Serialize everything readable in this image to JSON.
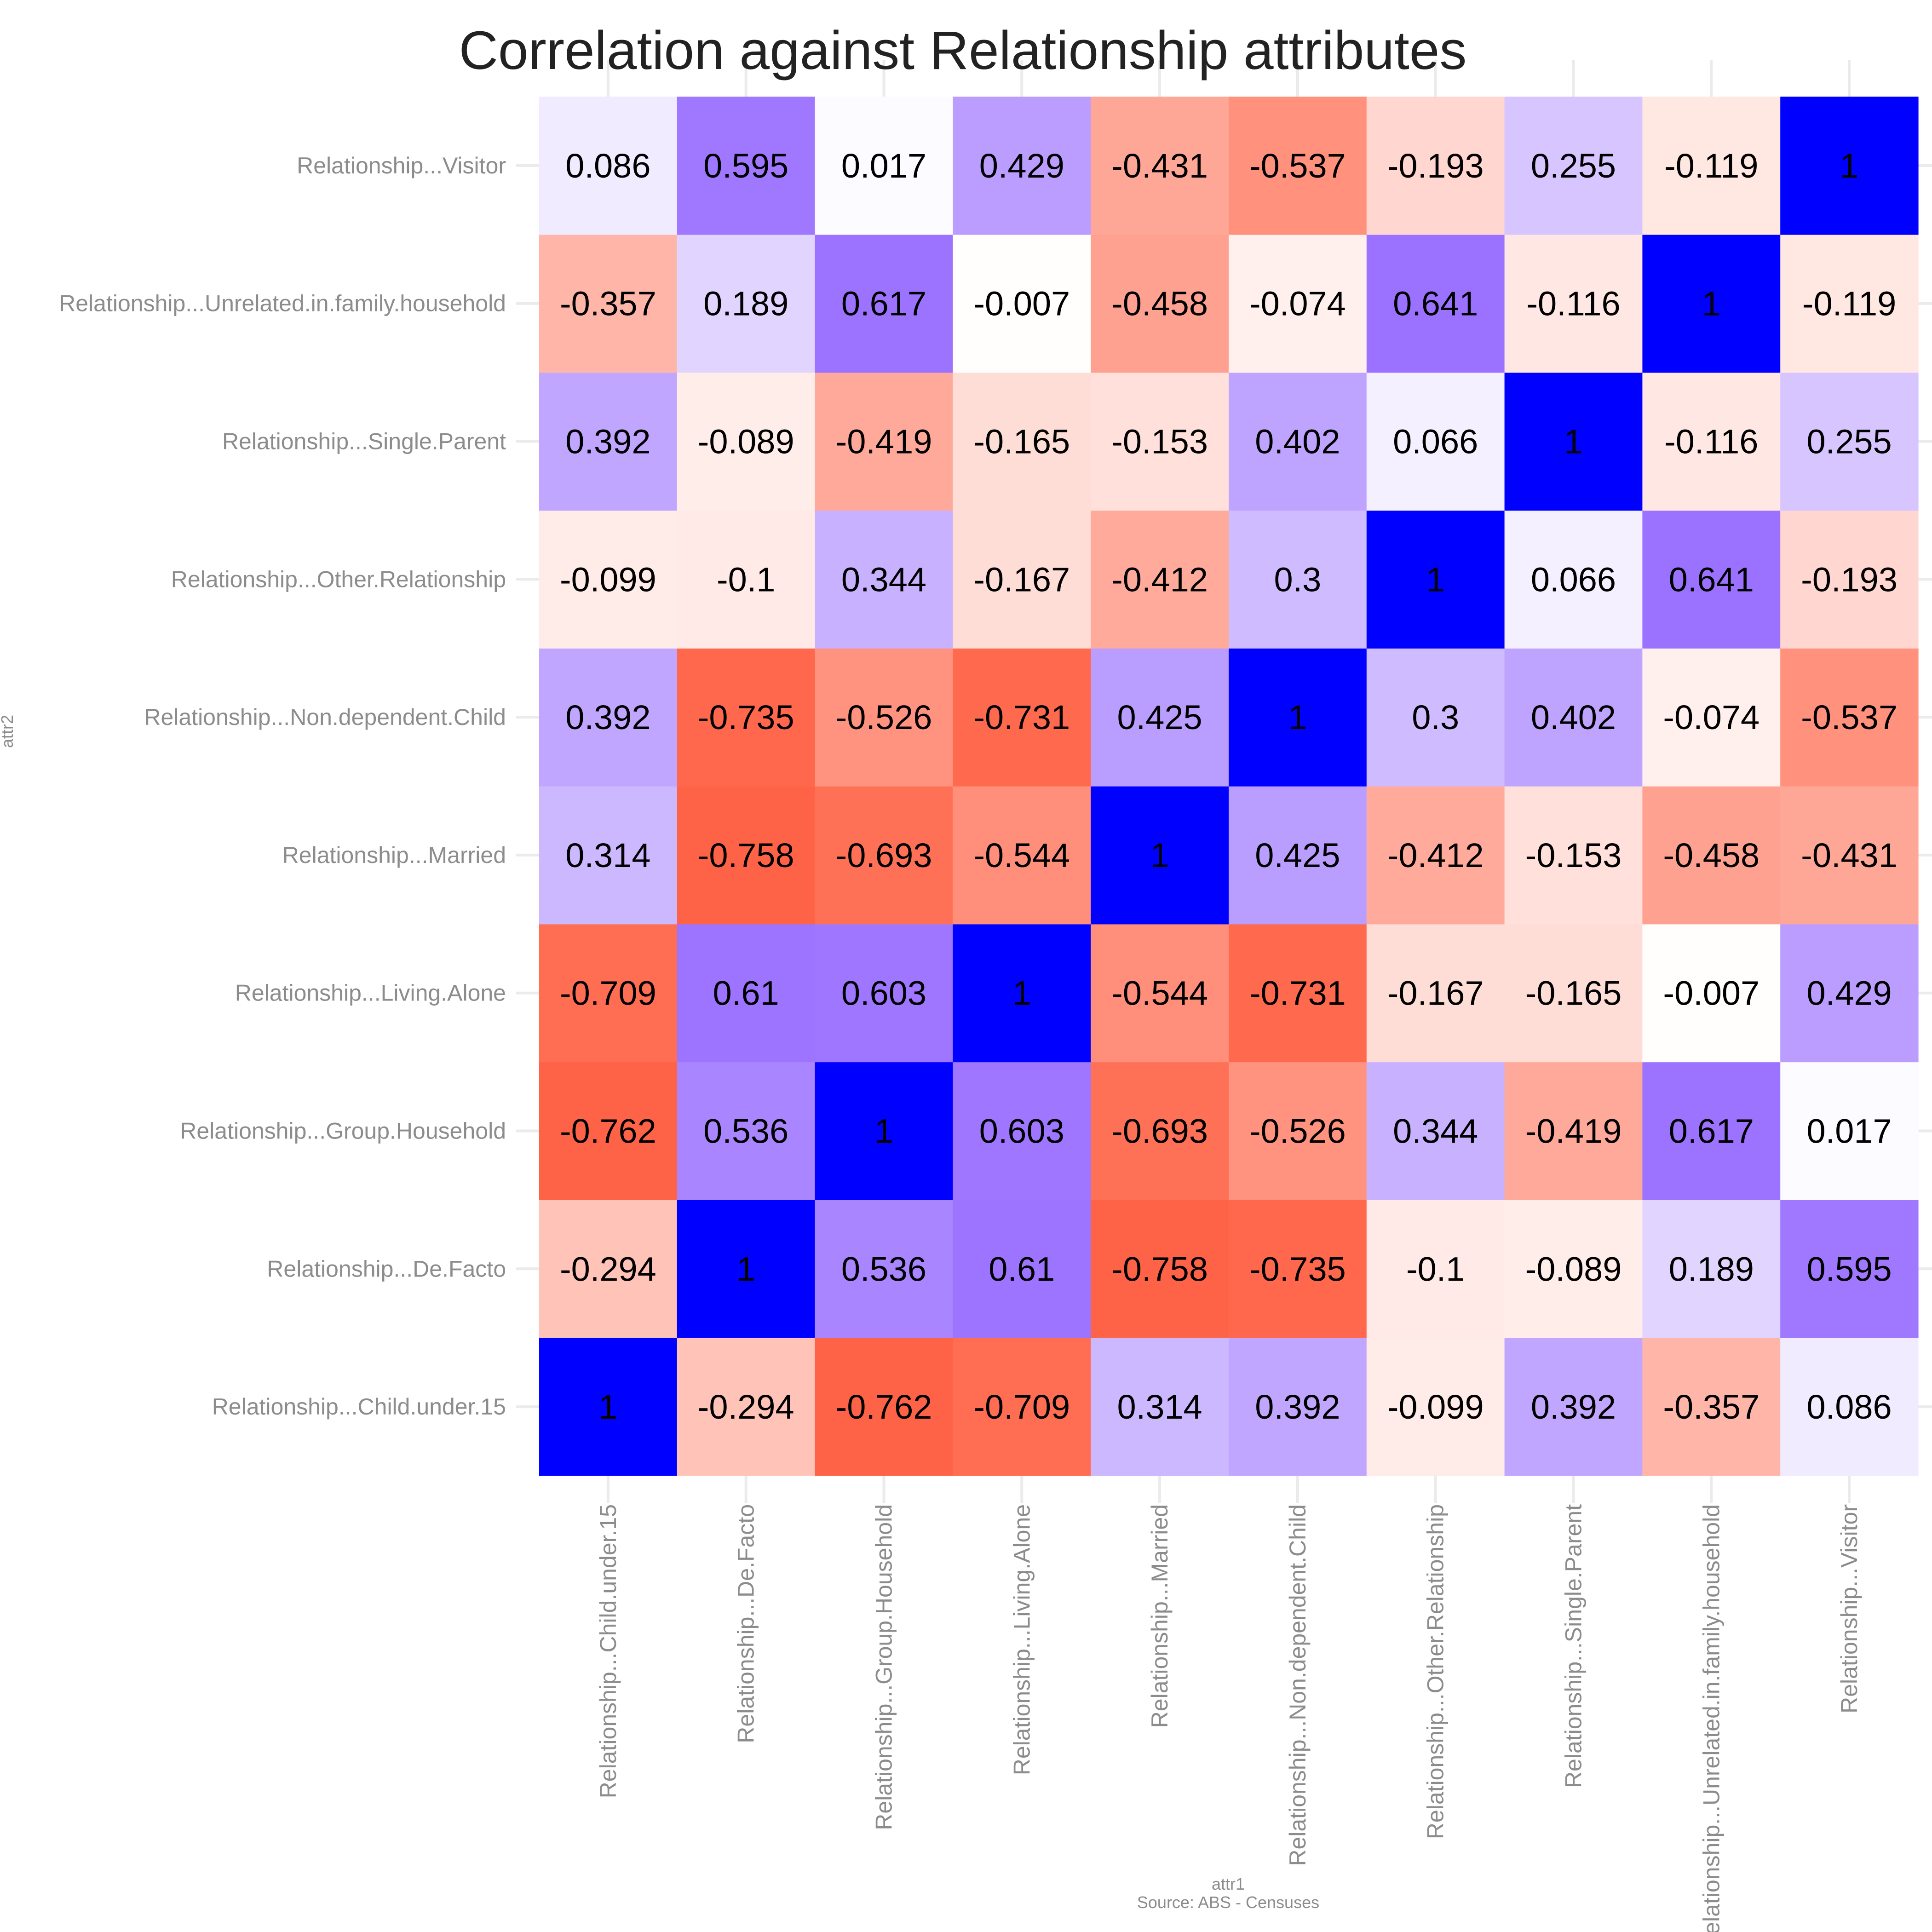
{
  "chart_data": {
    "type": "heatmap",
    "title": "Correlation against Relationship attributes",
    "xlabel": "attr1",
    "ylabel": "attr2",
    "caption": "Source: ABS - Censuses",
    "categories": [
      "Relationship...Child.under.15",
      "Relationship...De.Facto",
      "Relationship...Group.Household",
      "Relationship...Living.Alone",
      "Relationship...Married",
      "Relationship...Non.dependent.Child",
      "Relationship...Other.Relationship",
      "Relationship...Single.Parent",
      "Relationship...Unrelated.in.family.household",
      "Relationship...Visitor"
    ],
    "matrix": [
      [
        1,
        -0.294,
        -0.762,
        -0.709,
        0.314,
        0.392,
        -0.099,
        0.392,
        -0.357,
        0.086
      ],
      [
        -0.294,
        1,
        0.536,
        0.61,
        -0.758,
        -0.735,
        -0.1,
        -0.089,
        0.189,
        0.595
      ],
      [
        -0.762,
        0.536,
        1,
        0.603,
        -0.693,
        -0.526,
        0.344,
        -0.419,
        0.617,
        0.017
      ],
      [
        -0.709,
        0.61,
        0.603,
        1,
        -0.544,
        -0.731,
        -0.167,
        -0.165,
        -0.007,
        0.429
      ],
      [
        0.314,
        -0.758,
        -0.693,
        -0.544,
        1,
        0.425,
        -0.412,
        -0.153,
        -0.458,
        -0.431
      ],
      [
        0.392,
        -0.735,
        -0.526,
        -0.731,
        0.425,
        1,
        0.3,
        0.402,
        -0.074,
        -0.537
      ],
      [
        -0.099,
        -0.1,
        0.344,
        -0.167,
        -0.412,
        0.3,
        1,
        0.066,
        0.641,
        -0.193
      ],
      [
        0.392,
        -0.089,
        -0.419,
        -0.165,
        -0.153,
        0.402,
        0.066,
        1,
        -0.116,
        0.255
      ],
      [
        -0.357,
        0.189,
        0.617,
        -0.007,
        -0.458,
        -0.074,
        0.641,
        -0.116,
        1,
        -0.119
      ],
      [
        0.086,
        0.595,
        0.017,
        0.429,
        -0.431,
        -0.537,
        -0.193,
        0.255,
        -0.119,
        1
      ]
    ],
    "color_scale": {
      "negative": "#ff6347",
      "mid": "#ffffff",
      "positive_soft": "#9b72ff",
      "diagonal": "#0000ff"
    },
    "grid": true,
    "legend": "none"
  }
}
